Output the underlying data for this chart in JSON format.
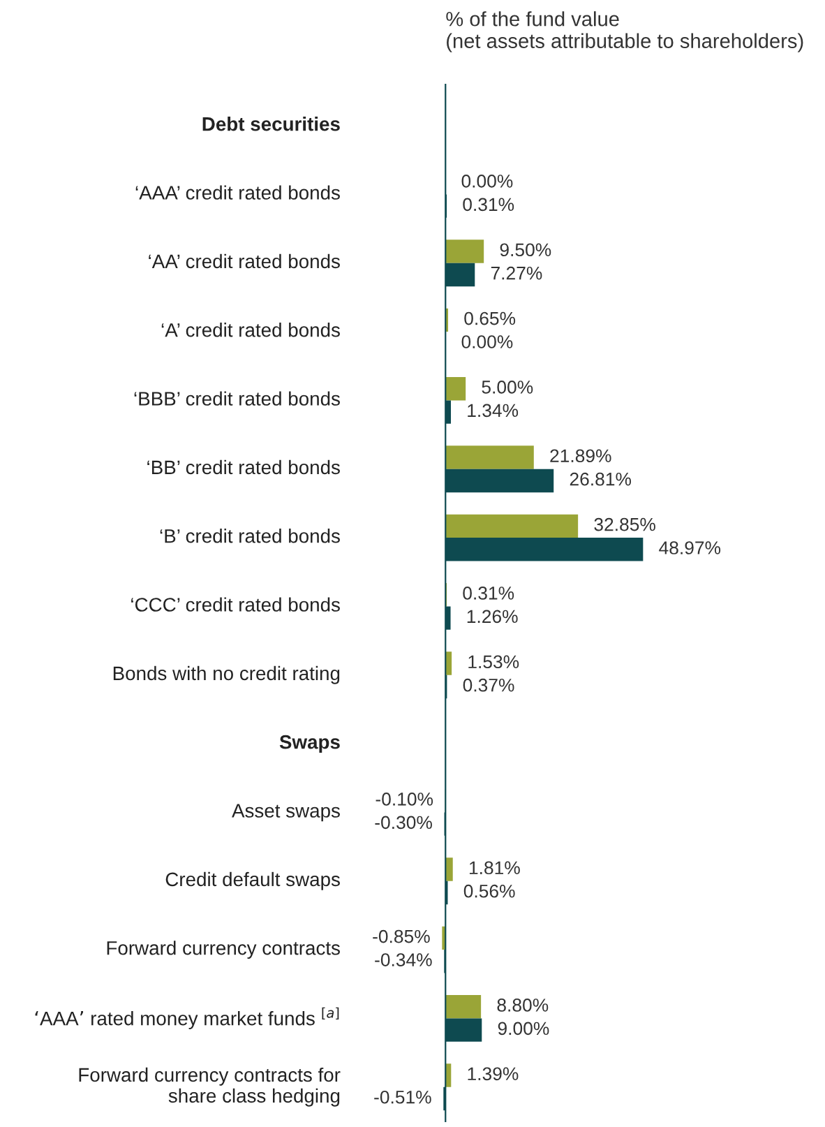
{
  "chart_data": {
    "type": "bar",
    "orientation": "horizontal",
    "title": "% of the fund value\n(net assets attributable to shareholders)",
    "categories": [
      "Debt securities",
      "‘AAA’ credit rated bonds",
      "‘AA’ credit rated bonds",
      "‘A’ credit rated bonds",
      "‘BBB’ credit rated bonds",
      "‘BB’ credit rated bonds",
      "‘B’ credit rated bonds",
      "‘CCC’ credit rated bonds",
      "Bonds with no credit rating",
      "Swaps",
      "Asset swaps",
      "Credit default swaps",
      "Forward currency contracts",
      "‘AAA’ rated money market funds $^{[a]}$",
      "Forward currency contracts for\nshare class hedging"
    ],
    "series": [
      {
        "color": "#9aa537",
        "values": [
          null,
          0.0,
          9.5,
          0.65,
          5.0,
          21.89,
          32.85,
          0.31,
          1.53,
          null,
          -0.1,
          1.81,
          -0.85,
          8.8,
          1.39
        ],
        "value_labels": [
          null,
          "0.00%",
          "9.50%",
          "0.65%",
          "5.00%",
          "21.89%",
          "32.85%",
          "0.31%",
          "1.53%",
          null,
          "-0.10%",
          "1.81%",
          "-0.85%",
          "8.80%",
          "1.39%"
        ]
      },
      {
        "color": "#0e4a50",
        "values": [
          null,
          0.31,
          7.27,
          0.0,
          1.34,
          26.81,
          48.97,
          1.26,
          0.37,
          null,
          -0.3,
          0.56,
          -0.34,
          9.0,
          -0.51
        ],
        "value_labels": [
          null,
          "0.31%",
          "7.27%",
          "0.00%",
          "1.34%",
          "26.81%",
          "48.97%",
          "1.26%",
          "0.37%",
          null,
          "-0.30%",
          "0.56%",
          "-0.34%",
          "9.00%",
          "-0.51%"
        ]
      }
    ]
  }
}
